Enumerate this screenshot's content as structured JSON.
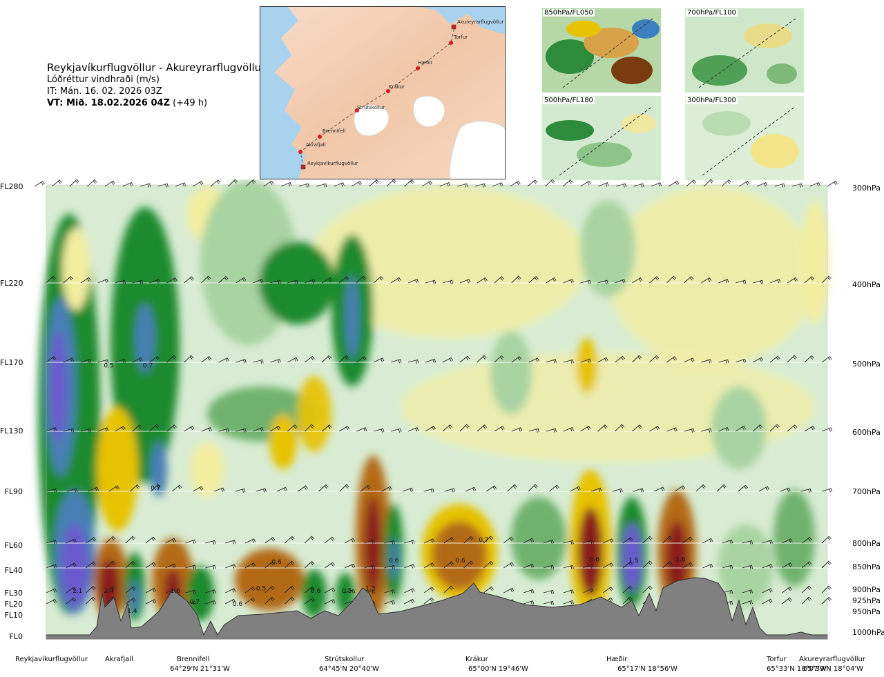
{
  "header": {
    "title": "Reykjavíkurflugvöllur - Akureyrarflugvöllur",
    "subtitle": "Lóðréttur vindhraði (m/s)",
    "issue_time": "IT: Mán. 16. 02. 2026 03Z",
    "valid_prefix": "VT: Mið. 18.02.2026 04Z",
    "valid_suffix": "(+49 h)"
  },
  "map": {
    "stations": [
      "Akureyrarflugvöllur",
      "Torfur",
      "Hæðir",
      "Krákur",
      "Strútskollur",
      "Brennifell",
      "Akrafjall",
      "Reykjavíkurflugvöllur"
    ],
    "colors": {
      "land": "#f3d2b8",
      "sea": "#a8d2ee",
      "glacier": "#ffffff",
      "route": "#555555",
      "marker": "#e0141e"
    }
  },
  "thumbnails": [
    {
      "label": "850hPa/FL050"
    },
    {
      "label": "700hPa/FL100"
    },
    {
      "label": "500hPa/FL180"
    },
    {
      "label": "300hPa/FL300"
    }
  ],
  "chart_data": {
    "type": "heatmap",
    "title": "Reykjavíkurflugvöllur - Akureyrarflugvöllur",
    "variable": "Lóðréttur vindhraði (m/s)",
    "flight_levels": [
      "FL280",
      "FL220",
      "FL170",
      "FL130",
      "FL90",
      "FL60",
      "FL40",
      "FL30",
      "FL20",
      "FL10",
      "FL0"
    ],
    "pressure_levels": [
      "300hPa",
      "400hPa",
      "500hPa",
      "600hPa",
      "700hPa",
      "800hPa",
      "850hPa",
      "900hPa",
      "925hPa",
      "950hPa",
      "1000hPa"
    ],
    "locations": [
      {
        "name": "Reykjavíkurflugvöllur",
        "coord": ""
      },
      {
        "name": "Akrafjall",
        "coord": ""
      },
      {
        "name": "Brennifell",
        "coord": "64°29'N 21°31'W"
      },
      {
        "name": "Strútskollur",
        "coord": "64°45'N 20°40'W"
      },
      {
        "name": "Krákur",
        "coord": "65°00'N 19°46'W"
      },
      {
        "name": "Hæðir",
        "coord": "65°17'N 18°56'W"
      },
      {
        "name": "Torfur",
        "coord": "65°33'N 18°07'W"
      },
      {
        "name": "Akureyrarflugvöllur",
        "coord": "65°39'N 18°04'W"
      }
    ],
    "value_labels": [
      {
        "text": "2.1",
        "x": 0.04,
        "level": 30
      },
      {
        "text": "2.4",
        "x": 0.08,
        "level": 30
      },
      {
        "text": "1.4",
        "x": 0.11,
        "level": 12
      },
      {
        "text": "1.6",
        "x": 0.165,
        "level": 30
      },
      {
        "text": "0.7",
        "x": 0.19,
        "level": 20
      },
      {
        "text": "0.6",
        "x": 0.245,
        "level": 18
      },
      {
        "text": "0.5",
        "x": 0.275,
        "level": 31
      },
      {
        "text": "0.6",
        "x": 0.295,
        "level": 45
      },
      {
        "text": "0.6",
        "x": 0.345,
        "level": 30
      },
      {
        "text": "0.5",
        "x": 0.385,
        "level": 30
      },
      {
        "text": "1.3",
        "x": 0.415,
        "level": 31
      },
      {
        "text": "0.6",
        "x": 0.445,
        "level": 46
      },
      {
        "text": "0.6",
        "x": 0.53,
        "level": 46
      },
      {
        "text": "0.7",
        "x": 0.56,
        "level": 62
      },
      {
        "text": "0.6",
        "x": 0.702,
        "level": 47
      },
      {
        "text": "1.5",
        "x": 0.752,
        "level": 46
      },
      {
        "text": "1.6",
        "x": 0.812,
        "level": 47
      },
      {
        "text": "0.5",
        "x": 0.08,
        "level": 167
      },
      {
        "text": "0.7",
        "x": 0.13,
        "level": 167
      },
      {
        "text": "0.7",
        "x": 0.14,
        "level": 91
      }
    ],
    "legend_colors": {
      "strong_up": "#6a5acd",
      "up2": "#4a7fb5",
      "up1": "#1f8a2e",
      "up0": "#6fb26d",
      "weak_up": "#a9d3a2",
      "neutral": "#d8ecd3",
      "weak_down": "#f3eda0",
      "down1": "#e7c200",
      "down2": "#b36a12",
      "strong_down": "#8a1f1f",
      "terrain": "#808080"
    }
  }
}
